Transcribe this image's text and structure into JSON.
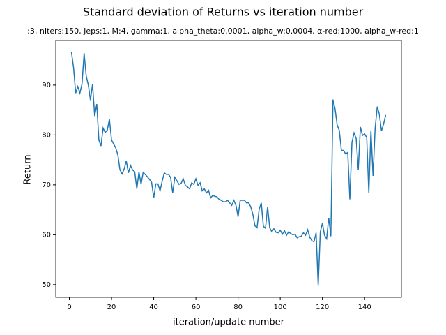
{
  "chart_data": {
    "type": "line",
    "title": "Standard deviation of Returns vs iteration number",
    "subtitle": ":3, nIters:150, Jeps:1, M:4, gamma:1, alpha_theta:0.0001, alpha_w:0.0004, α-red:1000, alpha_w-red:1",
    "x_label": "iteration/update number",
    "y_label": "Return",
    "x": [
      1,
      2,
      3,
      4,
      5,
      6,
      7,
      8,
      9,
      10,
      11,
      12,
      13,
      14,
      15,
      16,
      17,
      18,
      19,
      20,
      21,
      22,
      23,
      24,
      25,
      26,
      27,
      28,
      29,
      30,
      31,
      32,
      33,
      34,
      35,
      36,
      37,
      38,
      39,
      40,
      41,
      42,
      43,
      44,
      45,
      46,
      47,
      48,
      49,
      50,
      51,
      52,
      53,
      54,
      55,
      56,
      57,
      58,
      59,
      60,
      61,
      62,
      63,
      64,
      65,
      66,
      67,
      68,
      69,
      70,
      71,
      72,
      73,
      74,
      75,
      76,
      77,
      78,
      79,
      80,
      81,
      82,
      83,
      84,
      85,
      86,
      87,
      88,
      89,
      90,
      91,
      92,
      93,
      94,
      95,
      96,
      97,
      98,
      99,
      100,
      101,
      102,
      103,
      104,
      105,
      106,
      107,
      108,
      109,
      110,
      111,
      112,
      113,
      114,
      115,
      116,
      117,
      118,
      119,
      120,
      121,
      122,
      123,
      124,
      125,
      126,
      127,
      128,
      129,
      130,
      131,
      132,
      133,
      134,
      135,
      136,
      137,
      138,
      139,
      140,
      141,
      142,
      143,
      144,
      145,
      146,
      147,
      148,
      149,
      150
    ],
    "series": [
      {
        "color": "#1f77b4",
        "values": [
          96.6,
          93.5,
          88.4,
          89.7,
          88.4,
          90.2,
          96.4,
          91.8,
          90.0,
          87.0,
          90.2,
          83.8,
          86.2,
          79.0,
          77.8,
          81.4,
          80.5,
          81.0,
          83.2,
          79.0,
          78.2,
          77.4,
          76.0,
          73.0,
          72.2,
          73.2,
          74.8,
          72.4,
          73.9,
          73.0,
          72.6,
          69.2,
          72.6,
          70.1,
          72.5,
          72.1,
          71.6,
          71.1,
          70.5,
          67.4,
          70.2,
          70.2,
          68.8,
          70.7,
          72.4,
          72.1,
          72.1,
          71.5,
          68.4,
          71.5,
          70.8,
          70.1,
          70.3,
          71.2,
          69.9,
          69.6,
          69.2,
          70.4,
          70.1,
          71.2,
          69.9,
          70.4,
          68.8,
          69.2,
          68.4,
          68.9,
          67.4,
          67.9,
          67.7,
          67.6,
          67.1,
          66.9,
          66.6,
          66.6,
          66.9,
          66.4,
          65.9,
          66.9,
          65.9,
          63.6,
          66.9,
          66.9,
          66.9,
          66.4,
          66.4,
          65.6,
          64.1,
          61.8,
          61.4,
          65.1,
          66.4,
          61.7,
          61.3,
          65.6,
          61.4,
          60.6,
          61.2,
          60.5,
          60.4,
          60.9,
          60.1,
          60.8,
          59.9,
          60.6,
          60.2,
          60.0,
          60.1,
          59.4,
          59.6,
          59.7,
          60.4,
          59.9,
          61.0,
          59.5,
          58.8,
          58.6,
          60.4,
          49.8,
          60.6,
          62.3,
          59.9,
          59.2,
          63.4,
          59.7,
          87.1,
          85.2,
          82.0,
          80.9,
          76.9,
          76.9,
          76.2,
          76.5,
          67.1,
          78.5,
          80.4,
          79.3,
          73.0,
          81.6,
          79.9,
          80.2,
          79.5,
          68.3,
          80.9,
          71.8,
          81.4,
          85.7,
          84.1,
          80.8,
          82.2,
          84.0
        ]
      }
    ],
    "xlim": [
      -6.45,
      157.45
    ],
    "ylim": [
      47.46,
      98.94
    ],
    "xticks": [
      0,
      20,
      40,
      60,
      80,
      100,
      120,
      140
    ],
    "yticks": [
      50,
      60,
      70,
      80,
      90
    ]
  }
}
